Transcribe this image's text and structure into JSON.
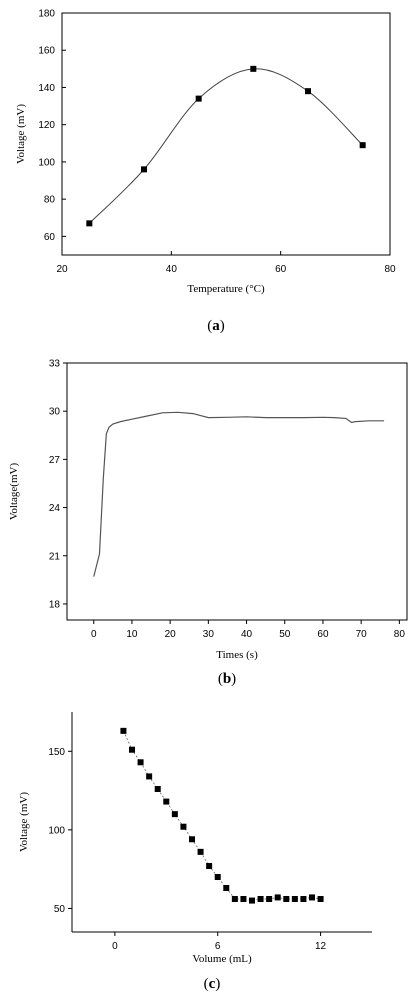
{
  "chart_data": [
    {
      "type": "scatter",
      "panel_label": "(a)",
      "panel_letter": "a",
      "title": "",
      "xlabel": "Temperature (°C)",
      "ylabel": "Voltage (mV)",
      "xlim": [
        20,
        80
      ],
      "ylim": [
        50,
        180
      ],
      "xticks": [
        20,
        40,
        60,
        80
      ],
      "yticks": [
        60,
        80,
        100,
        120,
        140,
        160,
        180
      ],
      "smooth_curve": true,
      "marker": "square",
      "series": [
        {
          "x": [
            25,
            35,
            45,
            55,
            65,
            75
          ],
          "y": [
            67,
            96,
            134,
            150,
            138,
            109
          ]
        }
      ]
    },
    {
      "type": "line",
      "panel_label": "(b)",
      "panel_letter": "b",
      "title": "",
      "xlabel": "Times (s)",
      "ylabel": "Voltage(mV)",
      "xlim": [
        -7,
        82
      ],
      "ylim": [
        17,
        33
      ],
      "xticks": [
        0,
        10,
        20,
        30,
        40,
        50,
        60,
        70,
        80
      ],
      "yticks": [
        18,
        21,
        24,
        27,
        30,
        33
      ],
      "series": [
        {
          "x": [
            0,
            1.5,
            2.5,
            3.3,
            4,
            5,
            7,
            10,
            14,
            18,
            22,
            26,
            30,
            35,
            40,
            45,
            50,
            55,
            60,
            63,
            66,
            67.5,
            68.5,
            72,
            76
          ],
          "y": [
            19.7,
            21.1,
            25.8,
            28.6,
            29.0,
            29.2,
            29.35,
            29.5,
            29.7,
            29.9,
            29.93,
            29.85,
            29.6,
            29.62,
            29.65,
            29.6,
            29.6,
            29.6,
            29.62,
            29.6,
            29.55,
            29.3,
            29.35,
            29.4,
            29.4
          ]
        }
      ]
    },
    {
      "type": "scatter",
      "panel_label": "(c)",
      "panel_letter": "c",
      "title": "",
      "xlabel": "Volume (mL)",
      "ylabel": "Voltage (mV)",
      "xlim": [
        -2.5,
        15
      ],
      "ylim": [
        35,
        175
      ],
      "xticks": [
        0,
        6,
        12
      ],
      "yticks": [
        50,
        100,
        150
      ],
      "marker": "square",
      "connect_dashed": true,
      "series": [
        {
          "x": [
            0.5,
            1.0,
            1.5,
            2.0,
            2.5,
            3.0,
            3.5,
            4.0,
            4.5,
            5.0,
            5.5,
            6.0,
            6.5,
            7.0,
            7.5,
            8.0,
            8.5,
            9.0,
            9.5,
            10.0,
            10.5,
            11.0,
            11.5,
            12.0
          ],
          "y": [
            163,
            151,
            143,
            134,
            126,
            118,
            110,
            102,
            94,
            86,
            77,
            70,
            63,
            56,
            56,
            55,
            56,
            56,
            57,
            56,
            56,
            56,
            57,
            56
          ]
        }
      ]
    }
  ]
}
